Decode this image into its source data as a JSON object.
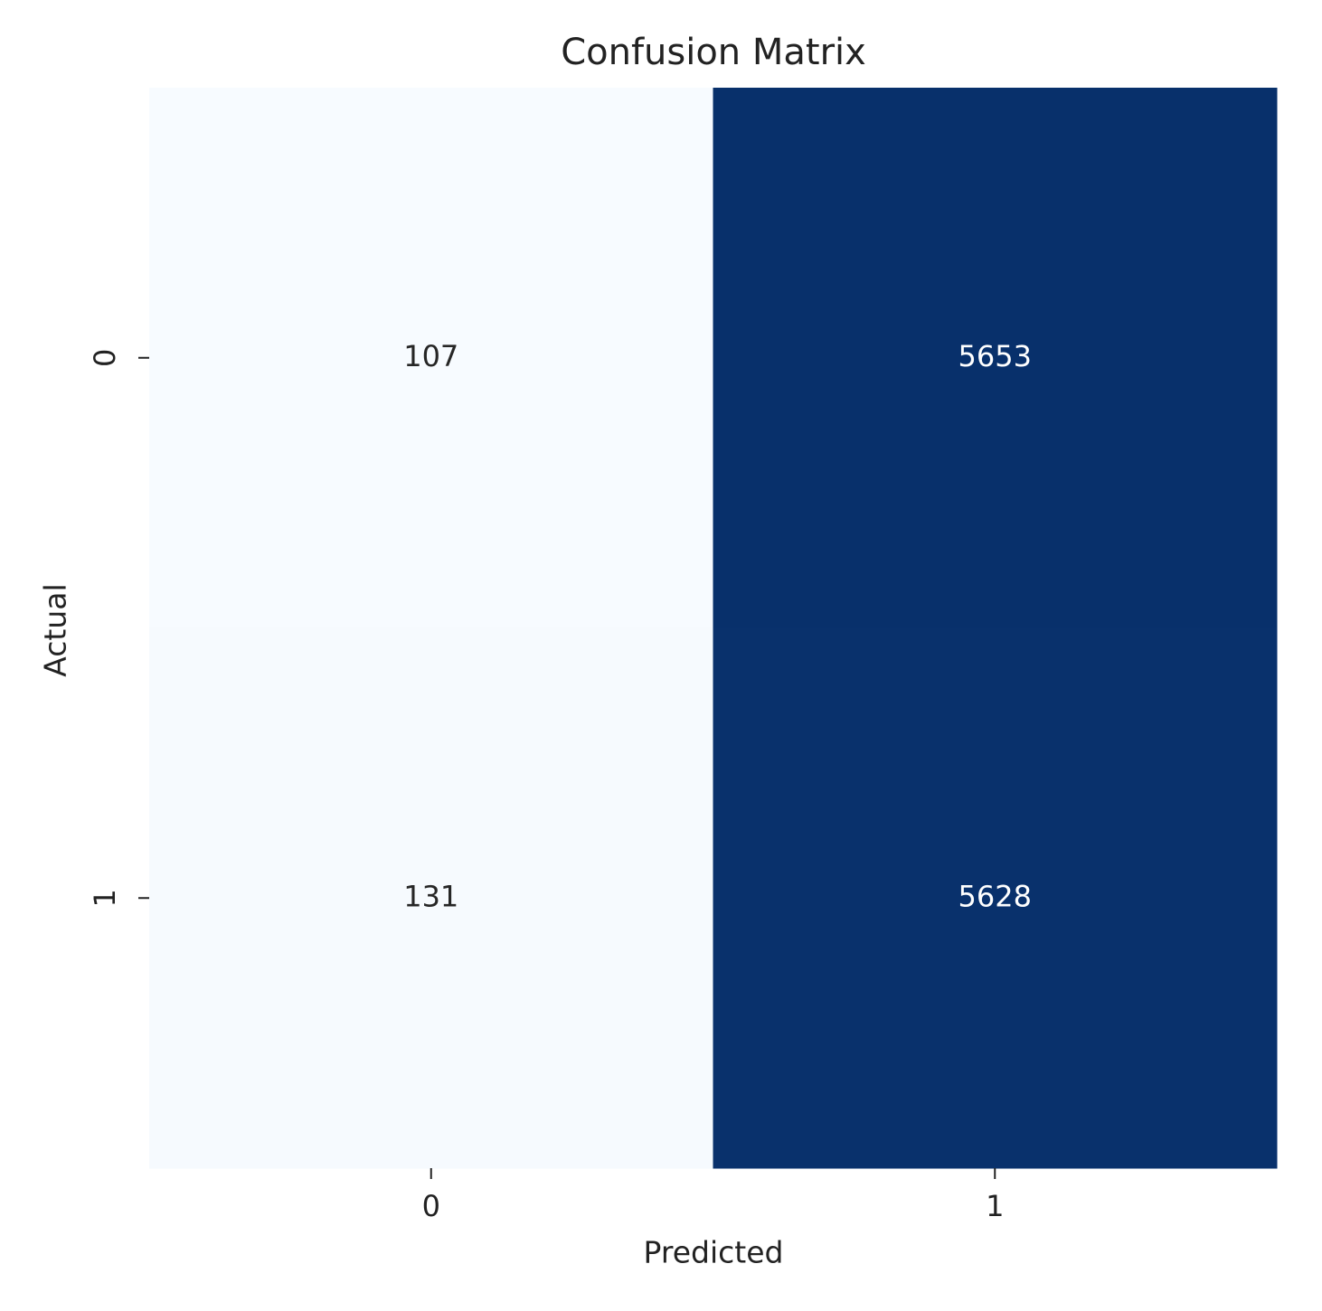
{
  "chart_data": {
    "type": "heatmap",
    "title": "Confusion Matrix",
    "x_label": "Predicted",
    "y_label": "Actual",
    "x_categories": [
      "0",
      "1"
    ],
    "y_categories": [
      "0",
      "1"
    ],
    "values": [
      [
        107,
        5653
      ],
      [
        131,
        5628
      ]
    ],
    "colormap": [
      "#f7fbff",
      "#08306b"
    ]
  }
}
